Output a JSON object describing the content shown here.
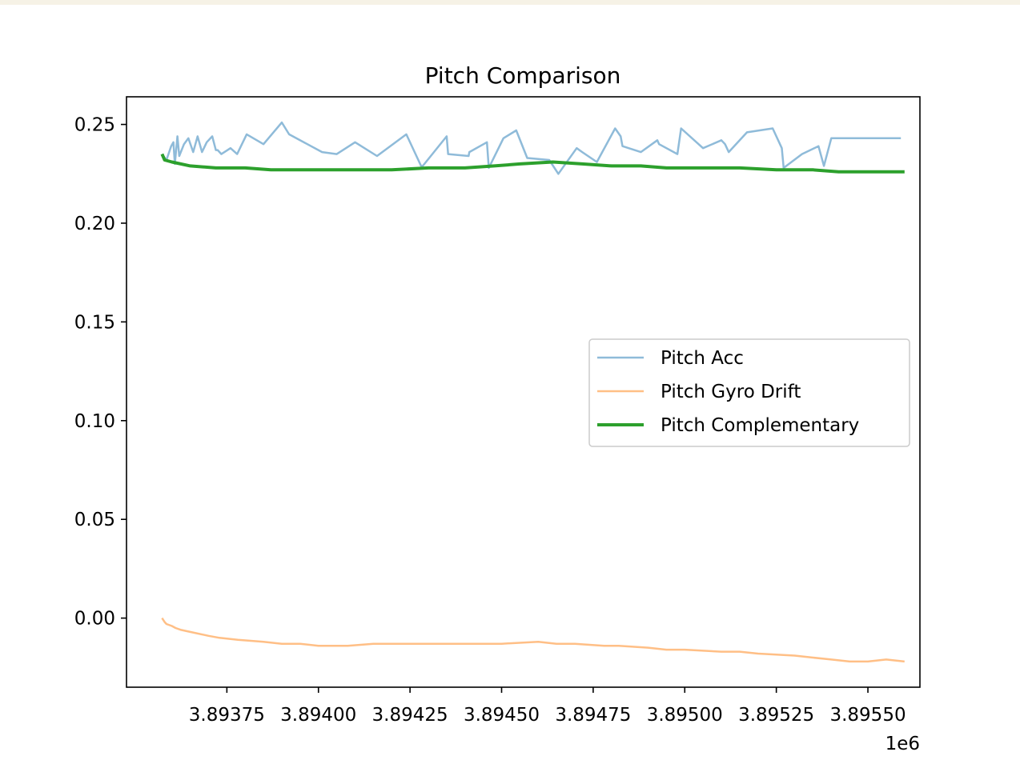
{
  "chart_data": {
    "type": "line",
    "title": "Pitch Comparison",
    "xlabel": "",
    "ylabel": "",
    "x_offset_label": "1e6",
    "xlim": [
      3893476,
      3895642
    ],
    "ylim": [
      -0.035,
      0.264
    ],
    "x_ticks": [
      {
        "value": 3893750,
        "label": "3.89375"
      },
      {
        "value": 3894000,
        "label": "3.89400"
      },
      {
        "value": 3894250,
        "label": "3.89425"
      },
      {
        "value": 3894500,
        "label": "3.89450"
      },
      {
        "value": 3894750,
        "label": "3.89475"
      },
      {
        "value": 3895000,
        "label": "3.89500"
      },
      {
        "value": 3895250,
        "label": "3.89525"
      },
      {
        "value": 3895500,
        "label": "3.89550"
      }
    ],
    "y_ticks": [
      {
        "value": 0.25,
        "label": "0.25"
      },
      {
        "value": 0.2,
        "label": "0.20"
      },
      {
        "value": 0.15,
        "label": "0.15"
      },
      {
        "value": 0.1,
        "label": "0.10"
      },
      {
        "value": 0.05,
        "label": "0.05"
      },
      {
        "value": 0.0,
        "label": "0.00"
      }
    ],
    "legend_position": "center-right",
    "series": [
      {
        "name": "Pitch Acc",
        "color": "#1f77b4",
        "opacity": 0.5,
        "width": 2.5,
        "x": [
          3893573,
          3893585,
          3893598,
          3893604,
          3893608,
          3893615,
          3893620,
          3893633,
          3893645,
          3893658,
          3893670,
          3893682,
          3893695,
          3893710,
          3893720,
          3893725,
          3893735,
          3893760,
          3893778,
          3893804,
          3893850,
          3893900,
          3893920,
          3894010,
          3894050,
          3894100,
          3894160,
          3894240,
          3894280,
          3894285,
          3894350,
          3894354,
          3894410,
          3894412,
          3894460,
          3894465,
          3894505,
          3894540,
          3894570,
          3894630,
          3894655,
          3894705,
          3894720,
          3894760,
          3894810,
          3894825,
          3894830,
          3894880,
          3894925,
          3894930,
          3894980,
          3894990,
          3895050,
          3895100,
          3895110,
          3895120,
          3895170,
          3895240,
          3895265,
          3895270,
          3895320,
          3895365,
          3895380,
          3895400,
          3895460,
          3895520,
          3895530,
          3895590
        ],
        "y": [
          0.235,
          0.232,
          0.239,
          0.241,
          0.23,
          0.244,
          0.234,
          0.24,
          0.243,
          0.236,
          0.244,
          0.236,
          0.241,
          0.244,
          0.237,
          0.237,
          0.235,
          0.238,
          0.235,
          0.245,
          0.24,
          0.251,
          0.245,
          0.236,
          0.235,
          0.241,
          0.234,
          0.245,
          0.229,
          0.229,
          0.244,
          0.235,
          0.234,
          0.236,
          0.241,
          0.228,
          0.243,
          0.247,
          0.233,
          0.232,
          0.225,
          0.238,
          0.236,
          0.231,
          0.248,
          0.244,
          0.239,
          0.236,
          0.242,
          0.24,
          0.235,
          0.248,
          0.238,
          0.242,
          0.24,
          0.236,
          0.246,
          0.248,
          0.238,
          0.228,
          0.235,
          0.239,
          0.229,
          0.243,
          0.243,
          0.243,
          0.243,
          0.243
        ]
      },
      {
        "name": "Pitch Gyro Drift",
        "color": "#ff7f0e",
        "opacity": 0.5,
        "width": 2.5,
        "x": [
          3893573,
          3893580,
          3893585,
          3893600,
          3893610,
          3893625,
          3893650,
          3893700,
          3893730,
          3893780,
          3893850,
          3893900,
          3893950,
          3894000,
          3894080,
          3894150,
          3894200,
          3894280,
          3894350,
          3894400,
          3894450,
          3894500,
          3894600,
          3894650,
          3894700,
          3894780,
          3894820,
          3894900,
          3894950,
          3895000,
          3895100,
          3895150,
          3895200,
          3895300,
          3895350,
          3895400,
          3895450,
          3895500,
          3895550,
          3895600
        ],
        "y": [
          0.0,
          -0.002,
          -0.003,
          -0.004,
          -0.005,
          -0.006,
          -0.007,
          -0.009,
          -0.01,
          -0.011,
          -0.012,
          -0.013,
          -0.013,
          -0.014,
          -0.014,
          -0.013,
          -0.013,
          -0.013,
          -0.013,
          -0.013,
          -0.013,
          -0.013,
          -0.012,
          -0.013,
          -0.013,
          -0.014,
          -0.014,
          -0.015,
          -0.016,
          -0.016,
          -0.017,
          -0.017,
          -0.018,
          -0.019,
          -0.02,
          -0.021,
          -0.022,
          -0.022,
          -0.021,
          -0.022
        ]
      },
      {
        "name": "Pitch Complementary",
        "color": "#2ca02c",
        "opacity": 1,
        "width": 4,
        "x": [
          3893573,
          3893580,
          3893600,
          3893650,
          3893720,
          3893800,
          3893870,
          3893950,
          3894030,
          3894110,
          3894200,
          3894300,
          3894400,
          3894480,
          3894550,
          3894640,
          3894720,
          3894800,
          3894880,
          3894950,
          3895050,
          3895150,
          3895250,
          3895350,
          3895420,
          3895500,
          3895600
        ],
        "y": [
          0.235,
          0.232,
          0.231,
          0.229,
          0.228,
          0.228,
          0.227,
          0.227,
          0.227,
          0.227,
          0.227,
          0.228,
          0.228,
          0.229,
          0.23,
          0.231,
          0.23,
          0.229,
          0.229,
          0.228,
          0.228,
          0.228,
          0.227,
          0.227,
          0.226,
          0.226,
          0.226
        ]
      }
    ]
  }
}
